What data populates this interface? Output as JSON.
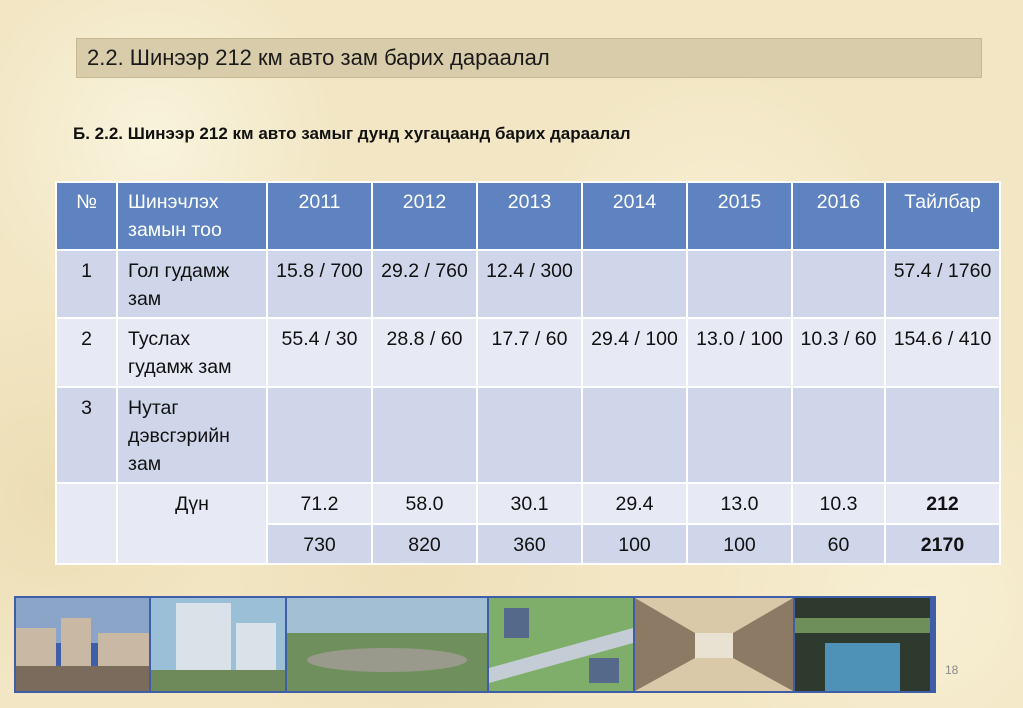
{
  "slide": {
    "title": "2.2. Шинээр 212 км авто зам барих дараалал",
    "subtitle": "Б. 2.2. Шинээр 212 км авто замыг дунд хугацаанд барих дараалал",
    "page_number": "18"
  },
  "table": {
    "headers": [
      "№",
      "Шинэчлэх замын тоо",
      "2011",
      "2012",
      "2013",
      "2014",
      "2015",
      "2016",
      "Тайлбар"
    ],
    "rows": [
      {
        "num": "1",
        "name": "Гол гудамж зам",
        "values": [
          "15.8 / 700",
          "29.2 / 760",
          "12.4 / 300",
          "",
          "",
          "",
          "57.4 / 1760"
        ]
      },
      {
        "num": "2",
        "name": "Туслах гудамж зам",
        "values": [
          "55.4 / 30",
          "28.8 / 60",
          "17.7 / 60",
          "29.4 / 100",
          "13.0 / 100",
          "10.3 / 60",
          "154.6 / 410"
        ]
      },
      {
        "num": "3",
        "name": "Нутаг дэвсгэрийн зам",
        "values": [
          "",
          "",
          "",
          "",
          "",
          "",
          ""
        ]
      }
    ],
    "total_label": "Дүн",
    "total_km": [
      "71.2",
      "58.0",
      "30.1",
      "29.4",
      "13.0",
      "10.3",
      "212"
    ],
    "total_count": [
      "730",
      "820",
      "360",
      "100",
      "100",
      "60",
      "2170"
    ]
  },
  "photos": [
    {
      "name": "photo-city-street",
      "colors": [
        "#8aa5c8",
        "#c9b8a4",
        "#7a6b5c"
      ]
    },
    {
      "name": "photo-building-render",
      "colors": [
        "#9bbfd6",
        "#d8e2e8",
        "#6f8a5a"
      ]
    },
    {
      "name": "photo-overpass-aerial",
      "colors": [
        "#a3bfd3",
        "#6f8f5c",
        "#9a9a8c"
      ]
    },
    {
      "name": "photo-interchange-render",
      "colors": [
        "#7fae6a",
        "#c4cdd6",
        "#556a8a"
      ]
    },
    {
      "name": "photo-underpass-interior",
      "colors": [
        "#d9c9a8",
        "#8c7a64",
        "#e9e2d2"
      ]
    },
    {
      "name": "photo-canal-bridge",
      "colors": [
        "#2e3a2e",
        "#4e92b8",
        "#6f8f5a"
      ]
    }
  ]
}
